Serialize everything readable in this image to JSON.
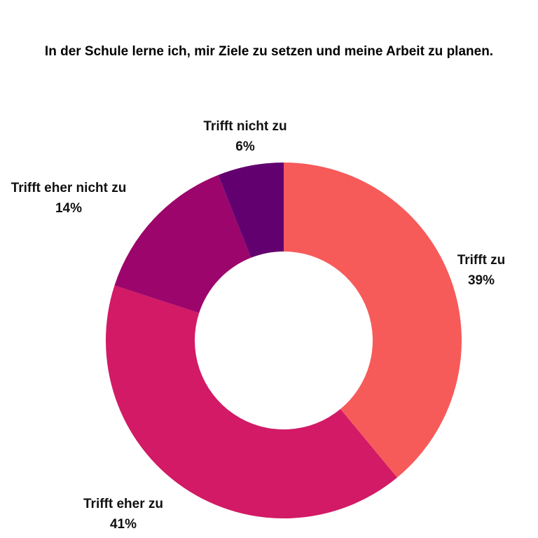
{
  "chart_data": {
    "type": "pie",
    "title": "In der Schule lerne ich, mir Ziele zu setzen und meine Arbeit zu planen.",
    "donut": true,
    "categories": [
      "Trifft zu",
      "Trifft eher zu",
      "Trifft eher nicht zu",
      "Trifft nicht zu"
    ],
    "values": [
      39,
      41,
      14,
      6
    ],
    "value_labels": [
      "39%",
      "41%",
      "14%",
      "6%"
    ],
    "colors": [
      "#F65B5A",
      "#D21A66",
      "#9C056B",
      "#63006F"
    ],
    "direction": "clockwise from top"
  }
}
